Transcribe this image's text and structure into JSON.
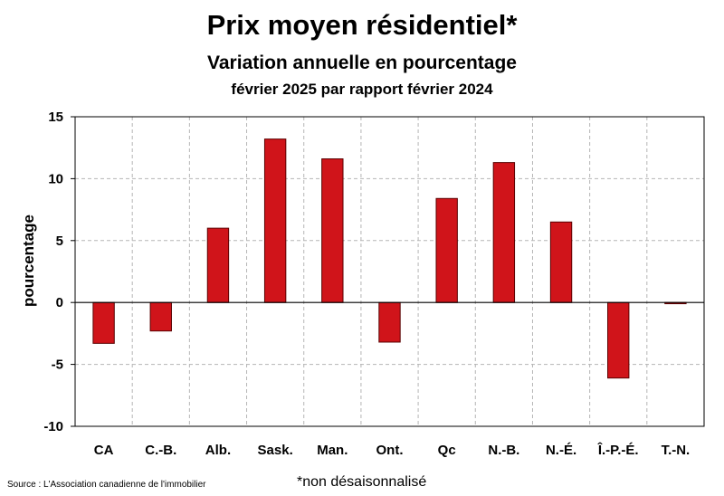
{
  "chart_data": {
    "type": "bar",
    "title": "Prix moyen résidentiel*",
    "subtitle": "Variation annuelle en pourcentage",
    "subtitle2": "février 2025 par rapport février 2024",
    "ylabel": "pourcentage",
    "xlabel": "",
    "categories": [
      "CA",
      "C.-B.",
      "Alb.",
      "Sask.",
      "Man.",
      "Ont.",
      "Qc",
      "N.-B.",
      "N.-É.",
      "Î.-P.-É.",
      "T.-N."
    ],
    "series": [
      {
        "values": [
          -3.3,
          -2.3,
          6.0,
          13.2,
          11.6,
          -3.2,
          8.4,
          11.3,
          6.5,
          -6.1,
          -0.1
        ]
      }
    ],
    "ylim": [
      -10,
      15
    ],
    "yticks": [
      -10,
      -5,
      0,
      5,
      10,
      15
    ],
    "ytick_labels": [
      "-10",
      "-5",
      "0",
      "5",
      "10",
      "15"
    ],
    "grid": true,
    "bar_color": "#d0141a",
    "bar_edge_color": "#5a0000"
  },
  "footer": {
    "source": "Source : L'Association canadienne de l'immobilier",
    "note": "*non désaisonnalisé"
  }
}
